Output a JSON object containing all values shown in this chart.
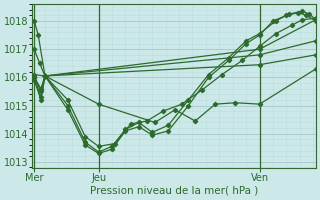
{
  "title": "",
  "xlabel": "Pression niveau de la mer( hPa )",
  "ylabel": "",
  "bg_color": "#cce8e8",
  "grid_color_major": "#aacccc",
  "grid_color_minor": "#bbdddd",
  "line_color": "#2d6a2d",
  "xtick_labels": [
    "Mer",
    "Jeu",
    "Ven"
  ],
  "xtick_positions": [
    0,
    48,
    168
  ],
  "vline_positions": [
    0,
    48,
    168
  ],
  "ylim": [
    1012.8,
    1018.6
  ],
  "xlim": [
    -2,
    210
  ],
  "yticks": [
    1013,
    1014,
    1015,
    1016,
    1017,
    1018
  ],
  "lines": [
    {
      "x": [
        0,
        3,
        8,
        168,
        210
      ],
      "y": [
        1018.0,
        1017.5,
        1016.05,
        1017.0,
        1018.05
      ]
    },
    {
      "x": [
        0,
        4,
        8,
        168,
        210
      ],
      "y": [
        1017.0,
        1016.5,
        1016.05,
        1016.8,
        1017.3
      ]
    },
    {
      "x": [
        0,
        8,
        168,
        210
      ],
      "y": [
        1016.1,
        1016.05,
        1016.45,
        1016.8
      ]
    },
    {
      "x": [
        0,
        5,
        8,
        48,
        90,
        105,
        120,
        135,
        150,
        168,
        210
      ],
      "y": [
        1016.0,
        1015.6,
        1016.05,
        1015.05,
        1014.4,
        1014.85,
        1014.45,
        1015.05,
        1015.1,
        1015.05,
        1016.3
      ]
    },
    {
      "x": [
        0,
        5,
        8,
        25,
        38,
        48,
        60,
        72,
        84,
        96,
        110,
        125,
        140,
        155,
        168,
        180,
        192,
        200,
        210
      ],
      "y": [
        1016.0,
        1015.5,
        1016.05,
        1015.2,
        1013.9,
        1013.55,
        1013.65,
        1014.35,
        1014.45,
        1014.8,
        1015.05,
        1015.55,
        1016.1,
        1016.6,
        1017.1,
        1017.55,
        1017.85,
        1018.05,
        1018.1
      ]
    },
    {
      "x": [
        0,
        5,
        8,
        25,
        38,
        48,
        58,
        68,
        78,
        88,
        100,
        115,
        130,
        145,
        158,
        168,
        180,
        190,
        200,
        205,
        210
      ],
      "y": [
        1016.0,
        1015.3,
        1016.05,
        1015.0,
        1013.7,
        1013.35,
        1013.55,
        1014.15,
        1014.4,
        1014.05,
        1014.3,
        1015.2,
        1016.1,
        1016.7,
        1017.3,
        1017.55,
        1018.0,
        1018.25,
        1018.35,
        1018.25,
        1018.05
      ]
    },
    {
      "x": [
        0,
        5,
        8,
        25,
        38,
        48,
        58,
        68,
        78,
        88,
        100,
        115,
        130,
        145,
        158,
        168,
        178,
        188,
        197,
        203,
        210
      ],
      "y": [
        1015.9,
        1015.2,
        1016.05,
        1014.85,
        1013.6,
        1013.3,
        1013.45,
        1014.1,
        1014.25,
        1013.95,
        1014.1,
        1015.0,
        1016.0,
        1016.6,
        1017.2,
        1017.5,
        1018.0,
        1018.2,
        1018.3,
        1018.2,
        1018.0
      ]
    }
  ],
  "marker": "D",
  "markersize": 2.2,
  "linewidth": 0.9,
  "xlabel_fontsize": 7.5,
  "tick_fontsize": 7,
  "figsize": [
    3.2,
    2.0
  ],
  "dpi": 100
}
